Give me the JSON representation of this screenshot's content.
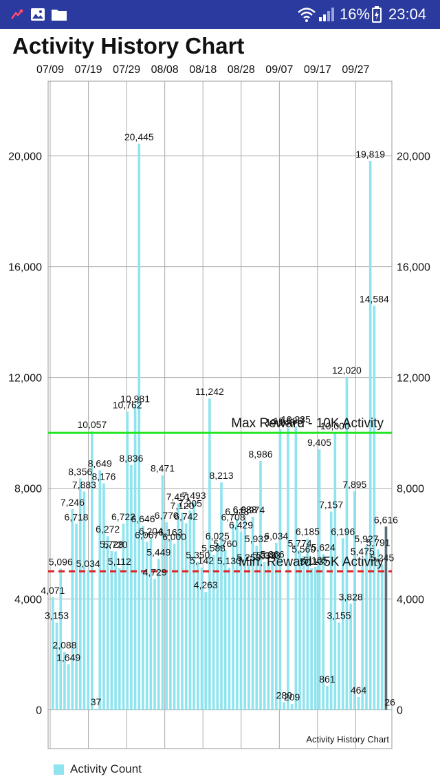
{
  "status_bar": {
    "battery": "16%",
    "time": "23:04",
    "icons": [
      "app-notification-icon",
      "image-icon",
      "folder-icon",
      "wifi-icon",
      "signal-icon",
      "battery-charging-icon"
    ]
  },
  "app": {
    "title": "Activity History Chart"
  },
  "colors": {
    "bar": "#8fe4ef",
    "max_line": "#22e622",
    "min_line": "#dd2222",
    "status_bar": "#2b3a9e",
    "highlight_bar": "#546e7a"
  },
  "chart_data": {
    "type": "bar",
    "description_label": "Activity History Chart",
    "x_tick_labels": [
      "07/09",
      "07/19",
      "07/29",
      "08/08",
      "08/18",
      "08/28",
      "09/07",
      "09/17",
      "09/27"
    ],
    "y_ticks": [
      "0",
      "4,000",
      "8,000",
      "12,000",
      "16,000",
      "20,000"
    ],
    "ylim": [
      -1400,
      22700
    ],
    "grid": true,
    "legend_position": "bottom-left",
    "series": [
      {
        "name": "Activity Count",
        "values": [
          4071,
          3153,
          5096,
          2088,
          1649,
          7246,
          6718,
          8356,
          7883,
          5034,
          10057,
          37,
          8649,
          8176,
          6272,
          5729,
          5720,
          5112,
          6722,
          10762,
          8836,
          10981,
          20445,
          6646,
          6067,
          6204,
          4729,
          5449,
          8471,
          6770,
          6163,
          6000,
          7451,
          7120,
          6742,
          7205,
          7493,
          5350,
          5142,
          4263,
          11242,
          5588,
          6025,
          8213,
          5760,
          5130,
          6708,
          6913,
          6429,
          6988,
          5253,
          6974,
          5932,
          8986,
          5336,
          5333,
          5366,
          6034,
          10143,
          280,
          10186,
          209,
          10235,
          5774,
          5560,
          6185,
          5113,
          5165,
          9405,
          5624,
          861,
          7157,
          10000,
          3155,
          6196,
          12020,
          3828,
          7895,
          464,
          5475,
          5927,
          19819,
          14584,
          5791,
          5245,
          6616,
          26
        ],
        "labels": [
          "4,071",
          "3,153",
          "5,096",
          "2,088",
          "1,649",
          "7,246",
          "6,718",
          "8,356",
          "7,883",
          "5,034",
          "10,057",
          "37",
          "8,649",
          "8,176",
          "6,272",
          "5,729",
          "5,720",
          "5,112",
          "6,722",
          "10,762",
          "8,836",
          "10,981",
          "20,445",
          "6,646",
          "6,067",
          "6,204",
          "4,729",
          "5,449",
          "8,471",
          "6,770",
          "6,163",
          "6,000",
          "7,451",
          "7,120",
          "6,742",
          "7,205",
          "7,493",
          "5,350",
          "5,142",
          "4,263",
          "11,242",
          "5,588",
          "6,025",
          "8,213",
          "5,760",
          "5,130",
          "6,708",
          "6,913",
          "6,429",
          "6,988",
          "5,253",
          "6,974",
          "5,932",
          "8,986",
          "5,336",
          "5,333",
          "5,366",
          "6,034",
          "10,143",
          "280",
          "10,186",
          "209",
          "10,235",
          "5,774",
          "5,560",
          "6,185",
          "5,113",
          "5,165",
          "9,405",
          "5,624",
          "861",
          "7,157",
          "10,000",
          "3,155",
          "6,196",
          "12,020",
          "3,828",
          "7,895",
          "464",
          "5,475",
          "5,927",
          "19,819",
          "14,584",
          "5,791",
          "5,245",
          "6,616",
          "26"
        ]
      }
    ],
    "limit_lines": [
      {
        "label": "Max Reward - 10K Activity",
        "value": 10000,
        "style": "solid"
      },
      {
        "label": "Min. Reward - 5K Activity",
        "value": 5000,
        "style": "dashed"
      }
    ]
  }
}
